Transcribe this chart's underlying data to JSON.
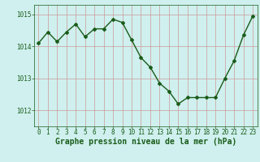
{
  "x": [
    0,
    1,
    2,
    3,
    4,
    5,
    6,
    7,
    8,
    9,
    10,
    11,
    12,
    13,
    14,
    15,
    16,
    17,
    18,
    19,
    20,
    21,
    22,
    23
  ],
  "y": [
    1014.1,
    1014.45,
    1014.15,
    1014.45,
    1014.7,
    1014.3,
    1014.55,
    1014.55,
    1014.85,
    1014.75,
    1014.2,
    1013.65,
    1013.35,
    1012.85,
    1012.6,
    1012.2,
    1012.4,
    1012.4,
    1012.4,
    1012.4,
    1013.0,
    1013.55,
    1014.35,
    1014.95
  ],
  "title": "Graphe pression niveau de la mer (hPa)",
  "bg_color": "#cff0ee",
  "line_color": "#1a5c1a",
  "grid_color": "#cc9999",
  "axis_label_color": "#1a5c1a",
  "tick_label_color": "#1a5c1a",
  "ylim": [
    1011.5,
    1015.3
  ],
  "yticks": [
    1012,
    1013,
    1014,
    1015
  ],
  "xticks": [
    0,
    1,
    2,
    3,
    4,
    5,
    6,
    7,
    8,
    9,
    10,
    11,
    12,
    13,
    14,
    15,
    16,
    17,
    18,
    19,
    20,
    21,
    22,
    23
  ],
  "marker": "D",
  "marker_size": 2,
  "linewidth": 1.0,
  "title_fontsize": 7,
  "tick_fontsize": 5.5
}
